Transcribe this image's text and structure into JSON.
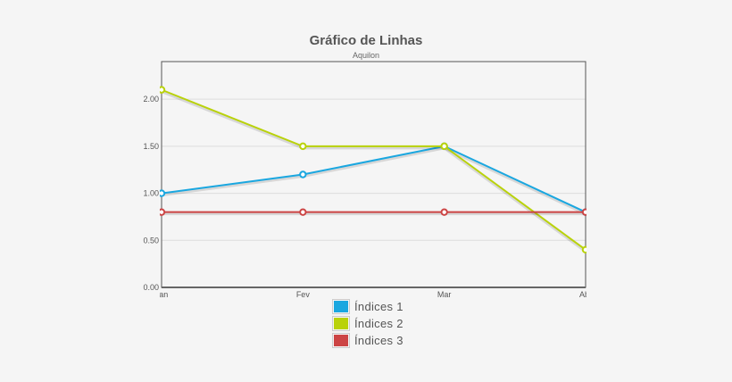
{
  "chart_data": {
    "type": "line",
    "title": "Gráfico de Linhas",
    "subtitle": "Aquilon",
    "categories": [
      "Jan",
      "Fev",
      "Mar",
      "Abr"
    ],
    "ylim": [
      0,
      2.4
    ],
    "yticks": [
      "0.00",
      "0.50",
      "1.00",
      "1.50",
      "2.00"
    ],
    "grid": true,
    "legend_position": "bottom",
    "series": [
      {
        "name": "Índices 1",
        "color": "#1aa7e0",
        "values": [
          1.0,
          1.2,
          1.5,
          0.8
        ]
      },
      {
        "name": "Índices 2",
        "color": "#b9d20a",
        "values": [
          2.1,
          1.5,
          1.5,
          0.4
        ]
      },
      {
        "name": "Índices 3",
        "color": "#cc4444",
        "values": [
          0.8,
          0.8,
          0.8,
          0.8
        ]
      }
    ]
  }
}
